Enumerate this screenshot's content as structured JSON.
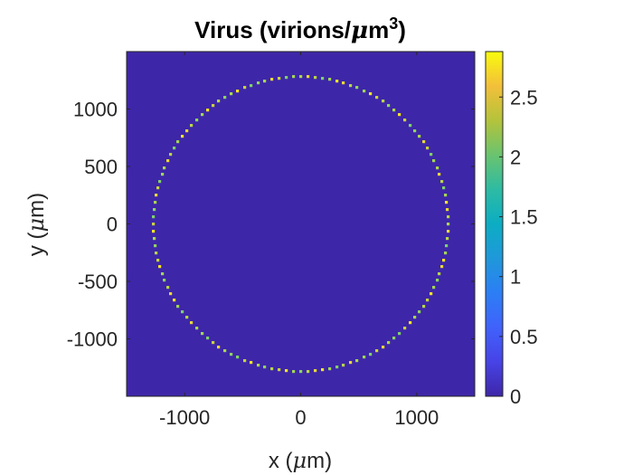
{
  "chart_data": {
    "type": "heatmap",
    "title": "Virus (virions/μm³)",
    "title_parts": {
      "before": "Virus (virions/",
      "mu": "μ",
      "unit": "m",
      "sup": "3",
      "after": ")"
    },
    "xlabel": "x (μm)",
    "xlabel_parts": {
      "before": "x (",
      "mu": "μ",
      "after": "m)"
    },
    "ylabel": "y (μm)",
    "ylabel_parts": {
      "before": "y (",
      "mu": "μ",
      "after": "m)"
    },
    "xlim": [
      -1500,
      1500
    ],
    "ylim": [
      -1500,
      1500
    ],
    "x_ticks": [
      -1000,
      0,
      1000
    ],
    "x_tick_labels": [
      "-1000",
      "0",
      "1000"
    ],
    "y_ticks": [
      -1000,
      -500,
      0,
      500,
      1000
    ],
    "y_tick_labels": [
      "-1000",
      "-500",
      "0",
      "500",
      "1000"
    ],
    "colorbar": {
      "range": [
        0,
        2.88
      ],
      "ticks": [
        0,
        0.5,
        1,
        1.5,
        2,
        2.5
      ],
      "tick_labels": [
        "0",
        "0.5",
        "1",
        "1.5",
        "2",
        "2.5"
      ],
      "colormap": "parula"
    },
    "grid": false,
    "background_value": 0,
    "ring": {
      "center": [
        0,
        0
      ],
      "radius": 1270,
      "typical_value": 2.0,
      "peak_value": 2.8
    }
  },
  "colors": {
    "background_low": "#3e26a8",
    "ring_typical": "#a9d84e",
    "ring_peak": "#f5e427",
    "axis": "#262626"
  }
}
